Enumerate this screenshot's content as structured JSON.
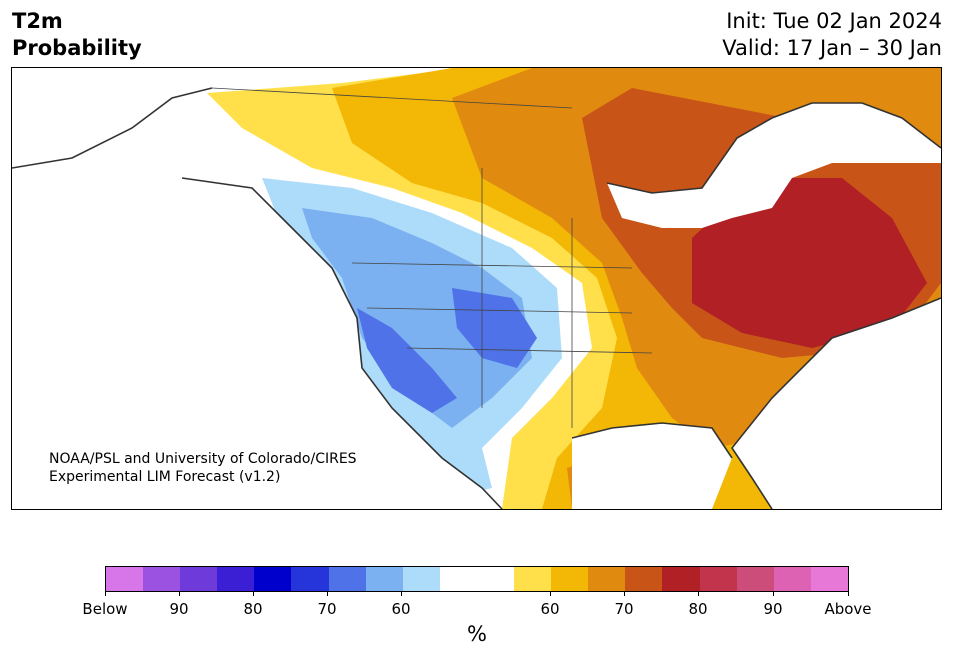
{
  "header": {
    "title_line1": "T2m",
    "title_line2": "Probability",
    "init": "Init: Tue 02 Jan 2024",
    "valid": "Valid: 17 Jan – 30 Jan"
  },
  "credit": {
    "line1": "NOAA/PSL and University of Colorado/CIRES",
    "line2": "Experimental LIM Forecast (v1.2)"
  },
  "colorbar": {
    "unit": "%",
    "colors": [
      "#d676e8",
      "#9c52e0",
      "#6e3ad9",
      "#3a1fd4",
      "#0000cc",
      "#2535d9",
      "#4f72e8",
      "#7bb1f0",
      "#addcfb",
      "#ffffff",
      "#ffffff",
      "#ffe04a",
      "#f3b705",
      "#e08a10",
      "#c85517",
      "#b02025",
      "#c2344c",
      "#cc4c7a",
      "#dd62b4",
      "#e878d8"
    ],
    "labels": [
      "Below",
      "90",
      "80",
      "70",
      "60",
      "60",
      "70",
      "80",
      "90",
      "Above"
    ]
  },
  "map_legend_colors": {
    "near_normal": "#ffffff",
    "above_60": "#ffe04a",
    "above_65": "#f3b705",
    "above_70": "#e08a10",
    "above_75": "#c85517",
    "above_80": "#b02025",
    "below_60": "#addcfb",
    "below_65": "#7bb1f0",
    "below_70": "#4f72e8"
  }
}
